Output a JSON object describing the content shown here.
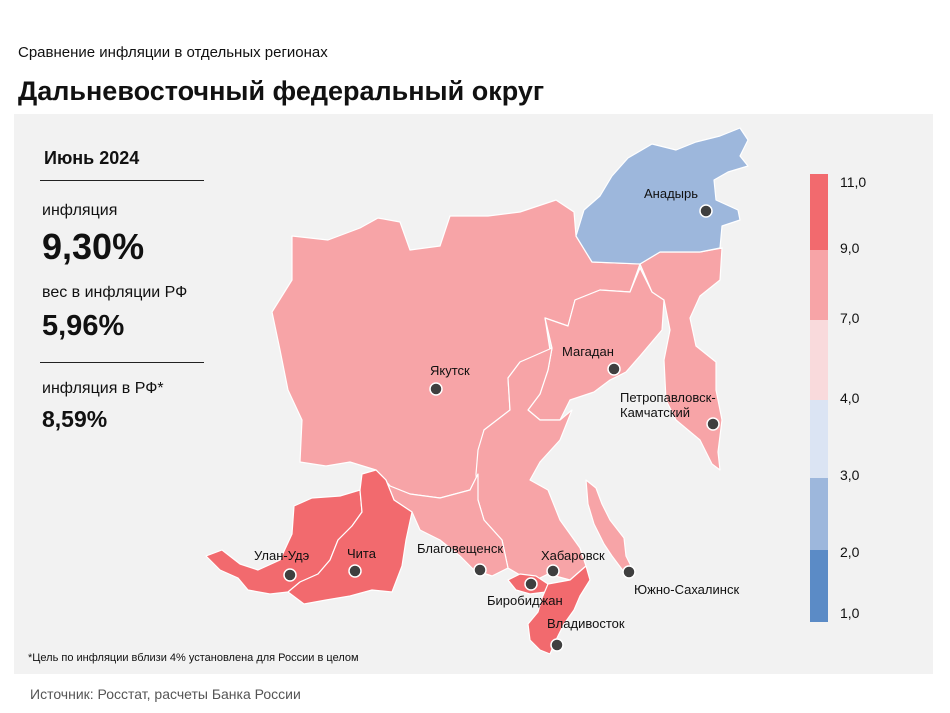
{
  "header": {
    "supertitle": "Сравнение  инфляции  в отдельных  регионах",
    "title": "Дальневосточный  федеральный   округ"
  },
  "stats": {
    "period": "Июнь 2024",
    "inflation_label": "инфляция",
    "inflation_value": "9,30%",
    "weight_label": "вес в инфляции  РФ",
    "weight_value": "5,96%",
    "rf_label": "инфляция  в РФ*",
    "rf_value": "8,59%"
  },
  "footnote": "*Цель по инфляции вблизи 4% установлена для России в целом",
  "source": "Источник: Росстат, расчеты  Банка  России",
  "colors": {
    "band_9_11": "#f26a6e",
    "band_7_9": "#f7a4a7",
    "band_4_7": "#f9dadc",
    "band_3_4": "#dbe4f3",
    "band_2_3": "#9db7dc",
    "band_1_2": "#5b8bc6",
    "panel_bg": "#f2f2f2"
  },
  "legend": {
    "ticks": [
      "11,0",
      "9,0",
      "7,0",
      "4,0",
      "3,0",
      "2,0",
      "1,0"
    ]
  },
  "regions": [
    {
      "name": "chukotka",
      "band": "2-3"
    },
    {
      "name": "yakutia",
      "band": "7-9"
    },
    {
      "name": "magadan",
      "band": "7-9"
    },
    {
      "name": "kamchatka",
      "band": "7-9"
    },
    {
      "name": "khabarovsk",
      "band": "7-9"
    },
    {
      "name": "amur",
      "band": "7-9"
    },
    {
      "name": "sakhalin",
      "band": "7-9"
    },
    {
      "name": "buryatia",
      "band": "9-11"
    },
    {
      "name": "zabaykalsky",
      "band": "9-11"
    },
    {
      "name": "jewish",
      "band": "9-11"
    },
    {
      "name": "primorye",
      "band": "9-11"
    }
  ],
  "cities": [
    "Анадырь",
    "Якутск",
    "Магадан",
    "Петропавловск-",
    "Камчатский",
    "Благовещенск",
    "Хабаровск",
    "Биробиджан",
    "Владивосток",
    "Южно-Сахалинск",
    "Улан-Удэ",
    "Чита"
  ]
}
